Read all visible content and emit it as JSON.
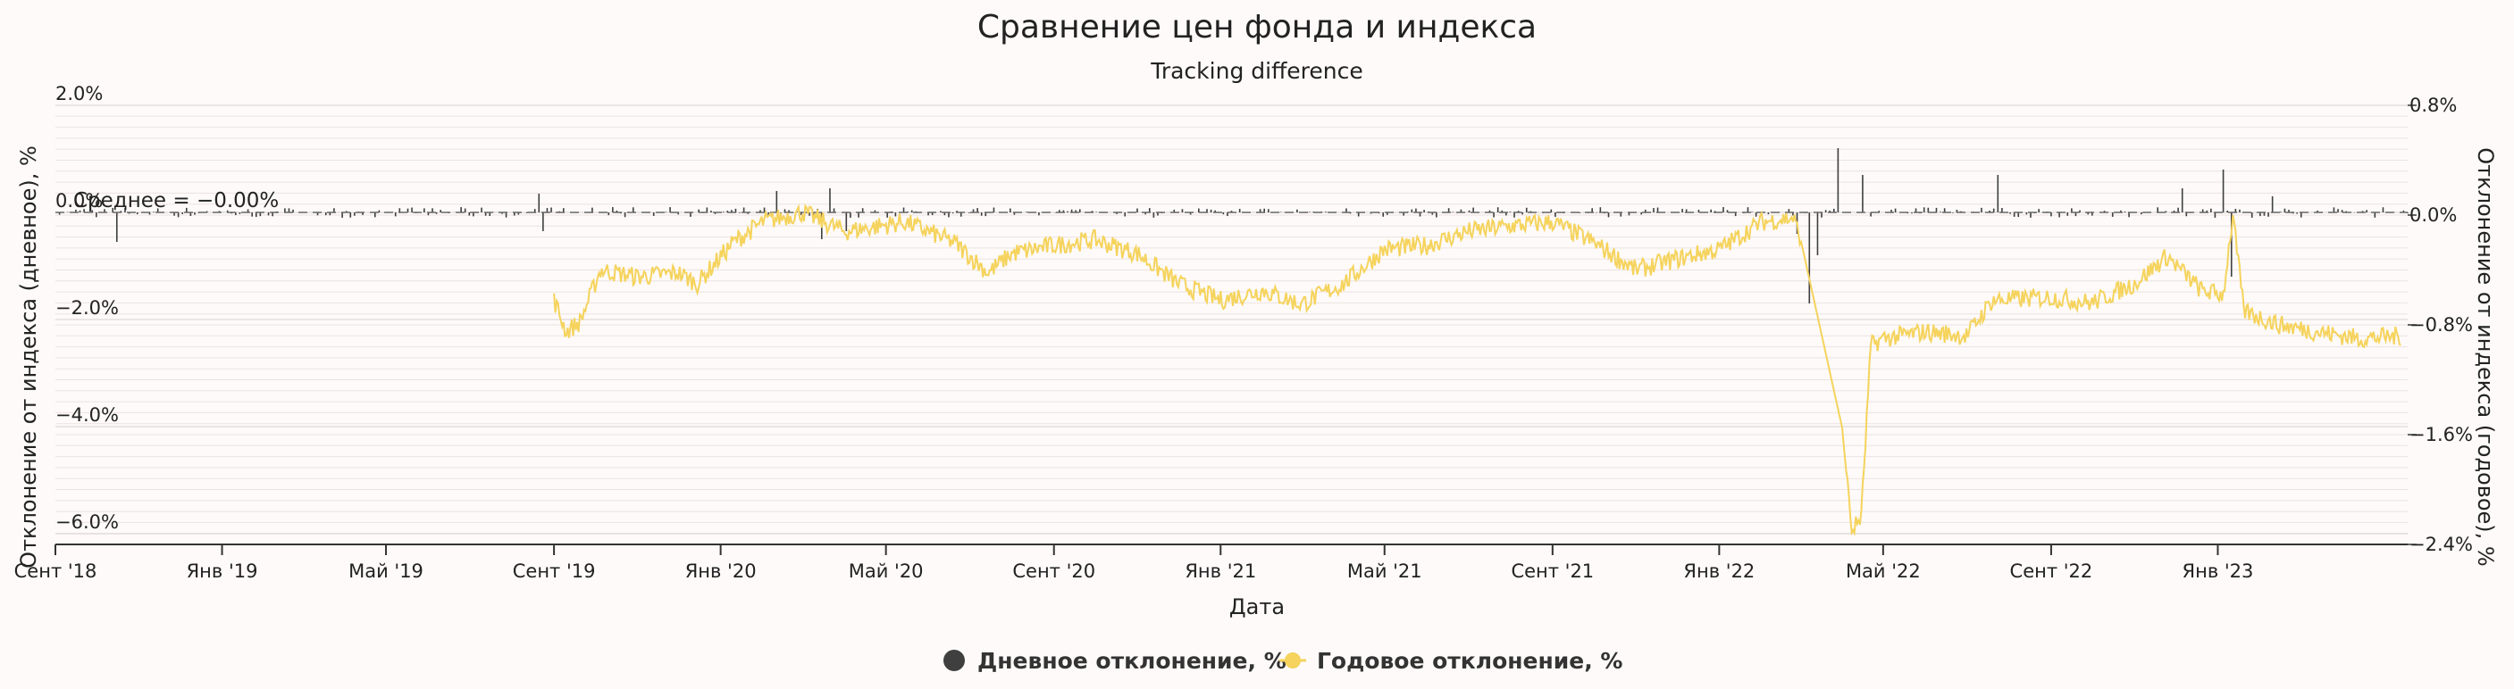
{
  "chart_data": {
    "type": "line",
    "title": "Сравнение цен фонда и индекса",
    "subtitle": "Tracking difference",
    "xlabel": "Дата",
    "ylabel_left": "Отклонение от индекса (дневное), %",
    "ylabel_right": "Отклонение от индекса (годовое), %",
    "x_ticks": [
      "Сент '18",
      "Янв '19",
      "Май '19",
      "Сент '19",
      "Янв '20",
      "Май '20",
      "Сент '20",
      "Янв '21",
      "Май '21",
      "Сент '21",
      "Янв '22",
      "Май '22",
      "Сент '22",
      "Янв '23"
    ],
    "x_range": [
      "2018-09-01",
      "2023-05-20"
    ],
    "y_left": {
      "ticks": [
        "2.0%",
        "0.0%",
        "−2.0%",
        "−4.0%",
        "−6.0%"
      ],
      "values": [
        2,
        0,
        -2,
        -4,
        -6
      ],
      "range": [
        -6.2,
        2.0
      ]
    },
    "y_right": {
      "ticks": [
        "0.8%",
        "0.0%",
        "−0.8%",
        "−1.6%",
        "−2.4%"
      ],
      "values": [
        0.8,
        0,
        -0.8,
        -1.6,
        -2.4
      ],
      "range": [
        -2.4,
        0.8
      ]
    },
    "mean_label": "Среднее = −0.00%",
    "grid": true,
    "legend_position": "bottom-center",
    "series": [
      {
        "name": "Дневное отклонение, %",
        "axis": "left",
        "style": "bars",
        "color": "#3f3f3f",
        "base_noise": 0.1,
        "spikes": [
          [
            "2018-10-15",
            -0.55
          ],
          [
            "2019-08-20",
            0.35
          ],
          [
            "2019-08-25",
            -0.35
          ],
          [
            "2020-02-10",
            0.4
          ],
          [
            "2020-03-15",
            -0.5
          ],
          [
            "2020-03-20",
            0.45
          ],
          [
            "2020-04-01",
            -0.35
          ],
          [
            "2022-02-28",
            -0.4
          ],
          [
            "2022-03-07",
            -1.7
          ],
          [
            "2022-03-14",
            -0.8
          ],
          [
            "2022-03-28",
            1.2
          ],
          [
            "2022-04-15",
            0.7
          ],
          [
            "2022-07-25",
            0.7
          ],
          [
            "2022-12-05",
            0.45
          ],
          [
            "2023-01-05",
            0.8
          ],
          [
            "2023-01-10",
            -1.2
          ],
          [
            "2023-02-10",
            0.3
          ]
        ]
      },
      {
        "name": "Годовое отклонение, %",
        "axis": "right",
        "style": "line",
        "color": "#f5d35c",
        "start": "2019-09-01",
        "anchors": [
          [
            "2019-09-01",
            -0.62
          ],
          [
            "2019-09-10",
            -0.85
          ],
          [
            "2019-09-20",
            -0.78
          ],
          [
            "2019-10-05",
            -0.4
          ],
          [
            "2019-11-01",
            -0.45
          ],
          [
            "2019-12-01",
            -0.42
          ],
          [
            "2019-12-15",
            -0.5
          ],
          [
            "2020-01-10",
            -0.2
          ],
          [
            "2020-02-01",
            -0.05
          ],
          [
            "2020-03-01",
            0.02
          ],
          [
            "2020-04-01",
            -0.12
          ],
          [
            "2020-05-15",
            -0.05
          ],
          [
            "2020-06-20",
            -0.2
          ],
          [
            "2020-07-15",
            -0.42
          ],
          [
            "2020-08-01",
            -0.28
          ],
          [
            "2020-09-01",
            -0.22
          ],
          [
            "2020-10-01",
            -0.18
          ],
          [
            "2020-11-01",
            -0.28
          ],
          [
            "2020-12-01",
            -0.5
          ],
          [
            "2021-01-01",
            -0.62
          ],
          [
            "2021-02-01",
            -0.55
          ],
          [
            "2021-03-01",
            -0.65
          ],
          [
            "2021-04-01",
            -0.5
          ],
          [
            "2021-05-01",
            -0.25
          ],
          [
            "2021-06-01",
            -0.22
          ],
          [
            "2021-07-01",
            -0.12
          ],
          [
            "2021-08-01",
            -0.08
          ],
          [
            "2021-09-01",
            -0.05
          ],
          [
            "2021-10-01",
            -0.2
          ],
          [
            "2021-11-01",
            -0.4
          ],
          [
            "2021-12-01",
            -0.32
          ],
          [
            "2022-01-01",
            -0.25
          ],
          [
            "2022-02-01",
            -0.05
          ],
          [
            "2022-02-24",
            -0.02
          ],
          [
            "2022-03-01",
            -0.15
          ],
          [
            "2022-04-01",
            -1.55
          ],
          [
            "2022-04-08",
            -2.3
          ],
          [
            "2022-04-15",
            -2.2
          ],
          [
            "2022-04-22",
            -0.95
          ],
          [
            "2022-05-01",
            -0.9
          ],
          [
            "2022-06-01",
            -0.85
          ],
          [
            "2022-07-01",
            -0.88
          ],
          [
            "2022-07-20",
            -0.62
          ],
          [
            "2022-09-01",
            -0.6
          ],
          [
            "2022-10-01",
            -0.64
          ],
          [
            "2022-11-01",
            -0.5
          ],
          [
            "2022-11-25",
            -0.3
          ],
          [
            "2022-12-20",
            -0.55
          ],
          [
            "2023-01-05",
            -0.58
          ],
          [
            "2023-01-12",
            0.0
          ],
          [
            "2023-01-20",
            -0.7
          ],
          [
            "2023-02-15",
            -0.8
          ],
          [
            "2023-03-15",
            -0.85
          ],
          [
            "2023-04-15",
            -0.9
          ],
          [
            "2023-05-15",
            -0.88
          ]
        ]
      }
    ]
  }
}
